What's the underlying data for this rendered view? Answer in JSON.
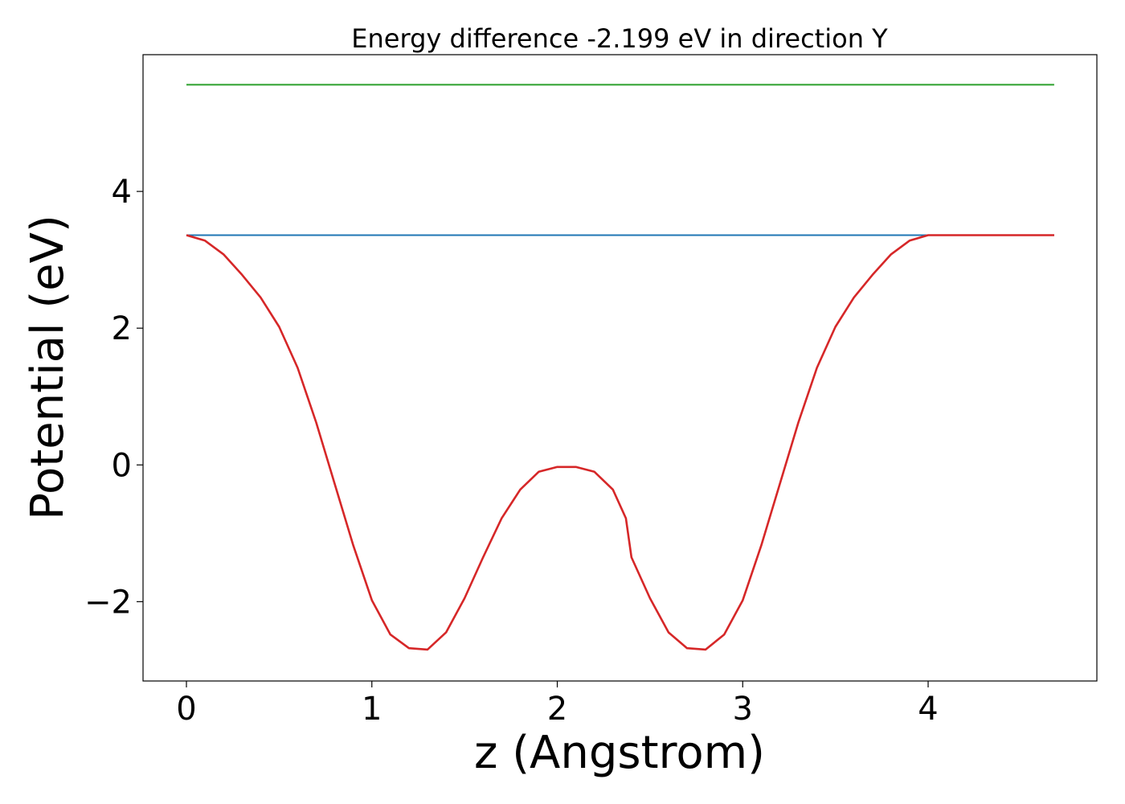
{
  "chart_data": {
    "type": "line",
    "title": "Energy difference -2.199 eV in direction Y",
    "xlabel": "z (Angstrom)",
    "ylabel": "Potential (eV)",
    "xlim": [
      -0.234,
      4.91
    ],
    "ylim": [
      -3.16,
      6.0
    ],
    "x_ticks": [
      0,
      1,
      2,
      3,
      4
    ],
    "x_tick_labels": [
      "0",
      "1",
      "2",
      "3",
      "4"
    ],
    "y_ticks": [
      -2,
      0,
      2,
      4
    ],
    "y_tick_labels": [
      "−2",
      "0",
      "2",
      "4"
    ],
    "grid": false,
    "series": [
      {
        "color": "#2ca02c",
        "x": [
          0,
          4.68
        ],
        "y": [
          5.56,
          5.56
        ]
      },
      {
        "color": "#1f77b4",
        "x": [
          0,
          4.68
        ],
        "y": [
          3.36,
          3.36
        ]
      },
      {
        "color": "#d62728",
        "x": [
          0,
          0.1,
          0.2,
          0.3,
          0.4,
          0.5,
          0.6,
          0.7,
          0.8,
          0.9,
          1.0,
          1.1,
          1.2,
          1.3,
          1.4,
          1.5,
          1.6,
          1.7,
          1.8,
          1.9,
          2.0,
          2.1,
          2.2,
          2.3,
          2.37,
          2.4,
          2.5,
          2.6,
          2.7,
          2.8,
          2.9,
          3.0,
          3.1,
          3.2,
          3.3,
          3.4,
          3.5,
          3.6,
          3.7,
          3.8,
          3.9,
          4.0,
          4.1,
          4.2,
          4.3,
          4.4,
          4.5,
          4.6,
          4.68
        ],
        "y": [
          3.36,
          3.28,
          3.08,
          2.78,
          2.45,
          2.02,
          1.42,
          0.62,
          -0.28,
          -1.18,
          -1.98,
          -2.48,
          -2.68,
          -2.7,
          -2.45,
          -1.95,
          -1.35,
          -0.78,
          -0.36,
          -0.1,
          -0.03,
          -0.03,
          -0.1,
          -0.36,
          -0.78,
          -1.35,
          -1.95,
          -2.45,
          -2.68,
          -2.7,
          -2.48,
          -1.98,
          -1.18,
          -0.28,
          0.62,
          1.42,
          2.02,
          2.45,
          2.78,
          3.08,
          3.28,
          3.36,
          3.36,
          3.36,
          3.36,
          3.36,
          3.36,
          3.36,
          3.36
        ]
      }
    ]
  }
}
